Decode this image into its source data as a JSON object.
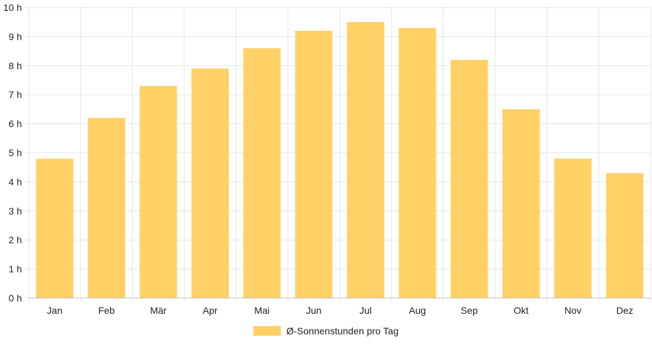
{
  "chart_data": {
    "type": "bar",
    "categories": [
      "Jan",
      "Feb",
      "Mär",
      "Apr",
      "Mai",
      "Jun",
      "Jul",
      "Aug",
      "Sep",
      "Okt",
      "Nov",
      "Dez"
    ],
    "series": [
      {
        "name": "Ø-Sonnenstunden pro Tag",
        "values": [
          4.8,
          6.2,
          7.3,
          7.9,
          8.6,
          9.2,
          9.5,
          9.3,
          8.2,
          6.5,
          4.8,
          4.3
        ]
      }
    ],
    "title": "",
    "xlabel": "",
    "ylabel": "",
    "ylim": [
      0,
      10
    ],
    "yticks": [
      "0 h",
      "1 h",
      "2 h",
      "3 h",
      "4 h",
      "5 h",
      "6 h",
      "7 h",
      "8 h",
      "9 h",
      "10 h"
    ],
    "grid": true,
    "legend_position": "bottom-center",
    "colors": {
      "bar": "#FFD166",
      "grid": "#e5e5e5",
      "axis": "#bfbfbf"
    }
  }
}
